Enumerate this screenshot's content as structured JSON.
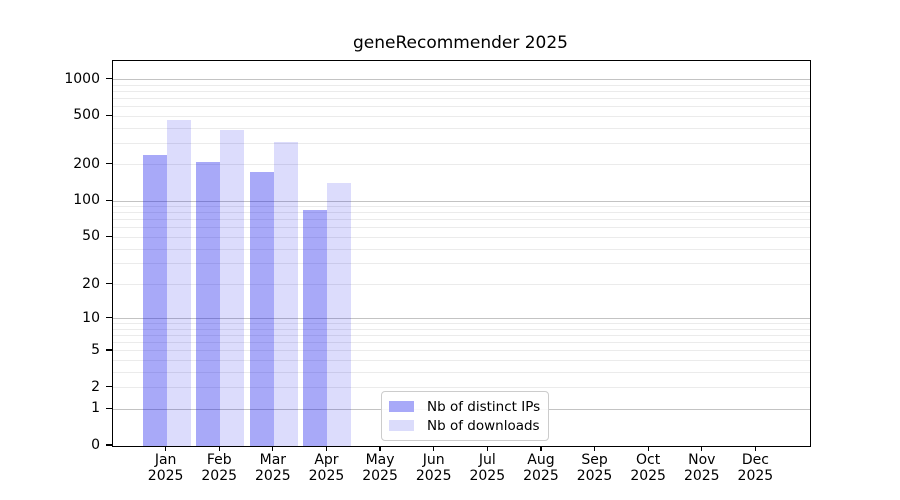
{
  "chart_data": {
    "type": "bar",
    "title": "geneRecommender 2025",
    "categories": [
      "Jan",
      "Feb",
      "Mar",
      "Apr",
      "May",
      "Jun",
      "Jul",
      "Aug",
      "Sep",
      "Oct",
      "Nov",
      "Dec"
    ],
    "year": "2025",
    "series": [
      {
        "name": "Nb of distinct IPs",
        "fill": "#a8a9f8",
        "fill_rgba": "rgba(7,10,235,0.35)",
        "values": [
          240,
          211,
          175,
          85,
          null,
          null,
          null,
          null,
          null,
          null,
          null,
          null
        ]
      },
      {
        "name": "Nb of downloads",
        "fill": "#dbdcfb",
        "fill_rgba": "rgba(7,10,235,0.14)",
        "values": [
          462,
          383,
          307,
          141,
          null,
          null,
          null,
          null,
          null,
          null,
          null,
          null
        ]
      }
    ],
    "yscale": "log10(value+1)",
    "ylim": [
      0,
      1420
    ],
    "yticks": [
      0,
      1,
      2,
      5,
      10,
      20,
      50,
      100,
      200,
      500,
      1000
    ],
    "grid": "horizontal only; minor lines 2-9 per decade, darker lines at powers of 10",
    "legend_position": "lower center",
    "colors": {
      "grid_minor": "#ebebeb",
      "grid_major": "#c3c3c3",
      "spine": "#000000",
      "text": "#000000",
      "background": "#ffffff"
    }
  }
}
